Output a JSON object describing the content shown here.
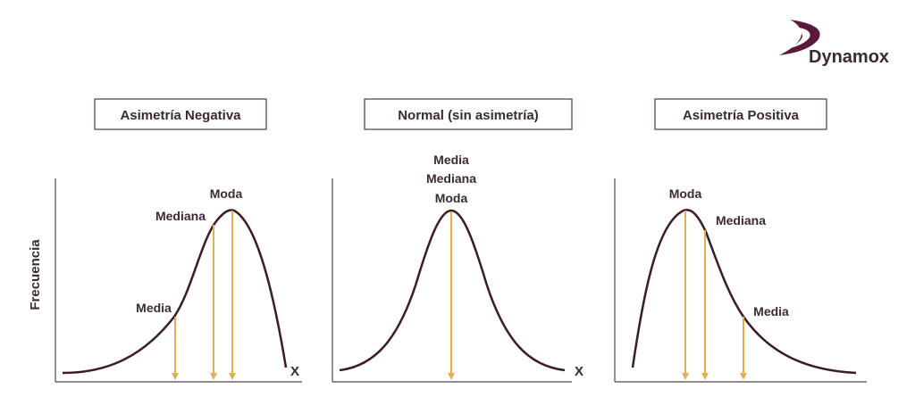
{
  "brand": {
    "name": "Dynamox"
  },
  "colors": {
    "curve": "#3d1a2c",
    "arrow": "#e3b04b",
    "axis": "#4a4a4a",
    "text": "#3b2a35",
    "box_border": "#4a3a44",
    "logo": "#5a1a3c"
  },
  "y_axis_label": "Frecuencia",
  "panels": [
    {
      "title": "Asimetría Negativa",
      "x_label": "X",
      "labels": {
        "media": "Media",
        "mediana": "Mediana",
        "moda": "Moda"
      }
    },
    {
      "title": "Normal (sin asimetría)",
      "x_label": "X",
      "labels": {
        "media": "Media",
        "mediana": "Mediana",
        "moda": "Moda"
      }
    },
    {
      "title": "Asimetría Positiva",
      "x_label": "",
      "labels": {
        "media": "Media",
        "mediana": "Mediana",
        "moda": "Moda"
      }
    }
  ]
}
